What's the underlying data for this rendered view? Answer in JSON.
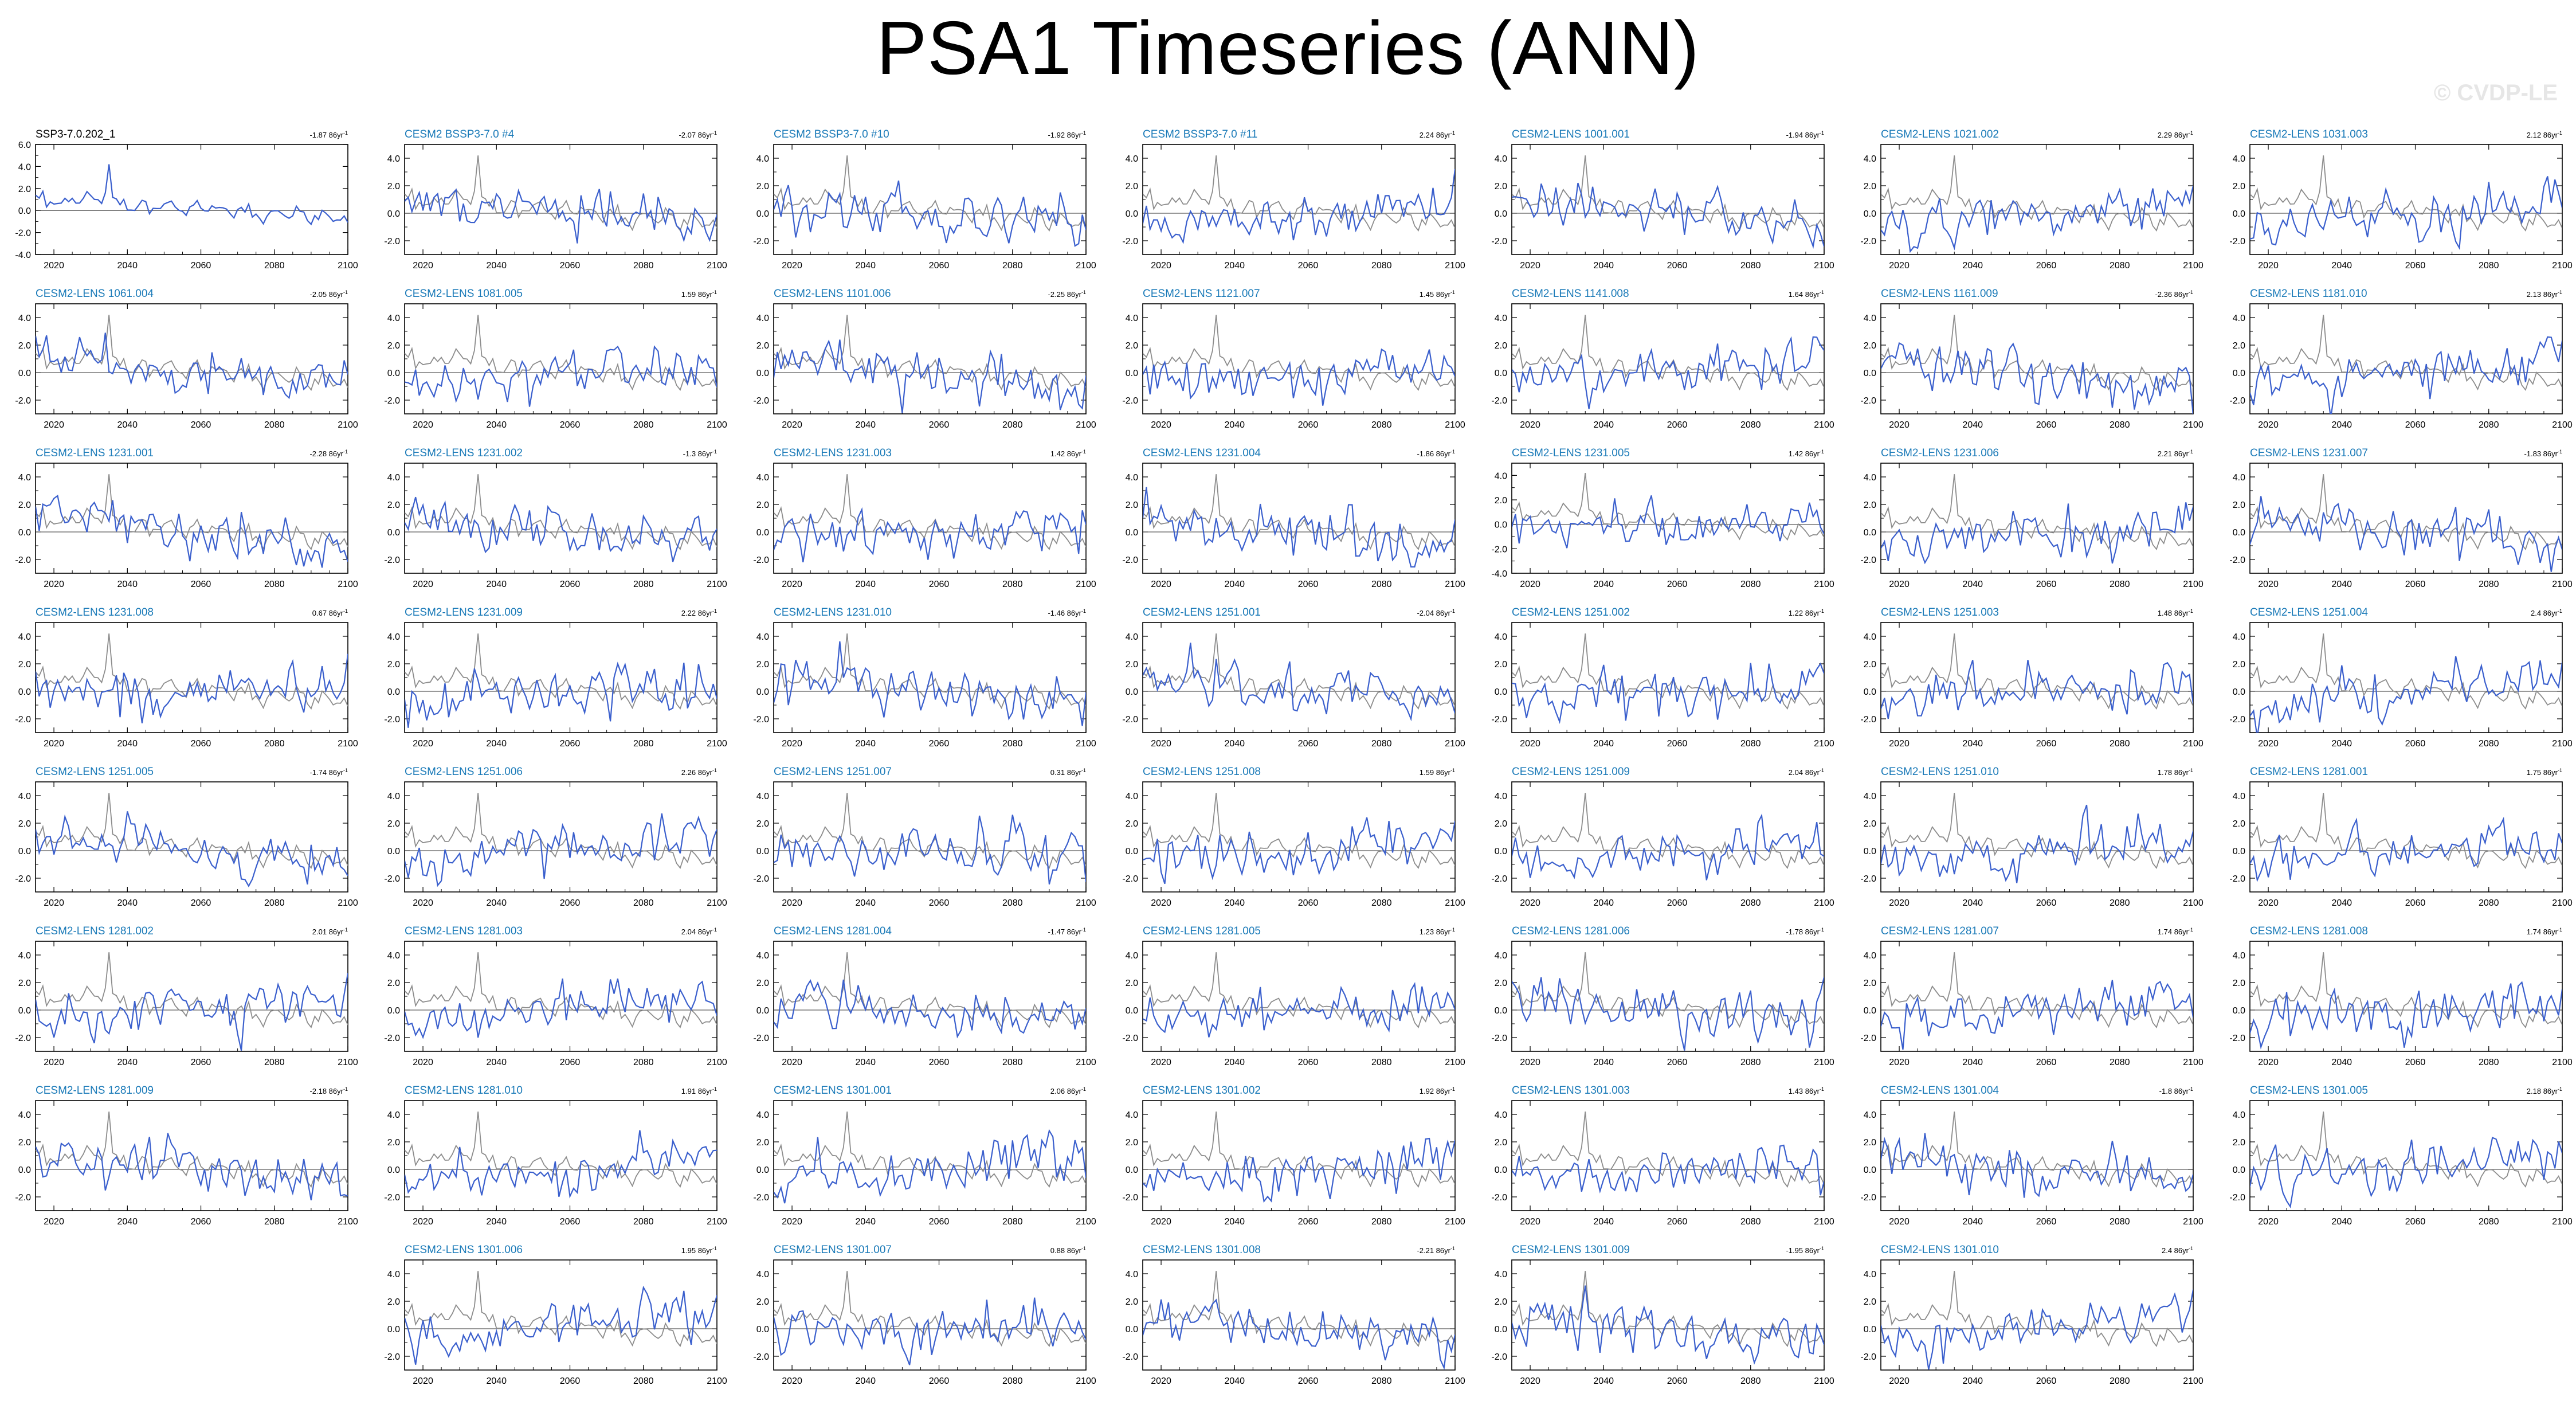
{
  "title": "PSA1 Timeseries (ANN)",
  "watermark": "© CVDP-LE",
  "colors": {
    "member": "#3a5fcd",
    "reference": "#8c8c8c",
    "zero": "#333333",
    "title_obs": "#000000",
    "title_member": "#1a7ab8"
  },
  "chart_data": {
    "type": "line",
    "layout": "panel-grid",
    "rows": 8,
    "cols": 7,
    "xlim": [
      2015,
      2100
    ],
    "x_ticks": [
      2020,
      2040,
      2060,
      2080,
      2100
    ],
    "x_tick_labels": [
      "2020",
      "2040",
      "2060",
      "2080",
      "2100"
    ],
    "series_note": "each panel: blue = member, gray = SSP3-7.0.202_1 reference",
    "panels": [
      {
        "label": "SSP3-7.0.202_1",
        "trend": "-1.87 86yr",
        "is_reference": true,
        "ylim": [
          -4,
          6
        ],
        "y_ticks": [
          "-4.0",
          "-2.0",
          "0.0",
          "2.0",
          "4.0",
          "6.0"
        ],
        "row": 0,
        "col": 0
      },
      {
        "label": "CESM2 BSSP3-7.0 #4",
        "trend": "-2.07 86yr",
        "ylim": [
          -3,
          5
        ],
        "y_ticks": [
          "-2.0",
          "0.0",
          "2.0",
          "4.0"
        ],
        "row": 0,
        "col": 1
      },
      {
        "label": "CESM2 BSSP3-7.0 #10",
        "trend": "-1.92 86yr",
        "ylim": [
          -3,
          5
        ],
        "y_ticks": [
          "-2.0",
          "0.0",
          "2.0",
          "4.0"
        ],
        "row": 0,
        "col": 2
      },
      {
        "label": "CESM2 BSSP3-7.0 #11",
        "trend": "2.24 86yr",
        "ylim": [
          -3,
          5
        ],
        "y_ticks": [
          "-2.0",
          "0.0",
          "2.0",
          "4.0"
        ],
        "row": 0,
        "col": 3
      },
      {
        "label": "CESM2-LENS 1001.001",
        "trend": "-1.94 86yr",
        "ylim": [
          -3,
          5
        ],
        "y_ticks": [
          "-2.0",
          "0.0",
          "2.0",
          "4.0"
        ],
        "row": 0,
        "col": 4
      },
      {
        "label": "CESM2-LENS 1021.002",
        "trend": "2.29 86yr",
        "ylim": [
          -3,
          5
        ],
        "y_ticks": [
          "-2.0",
          "0.0",
          "2.0",
          "4.0"
        ],
        "row": 0,
        "col": 5
      },
      {
        "label": "CESM2-LENS 1031.003",
        "trend": "2.12 86yr",
        "ylim": [
          -3,
          5
        ],
        "y_ticks": [
          "-2.0",
          "0.0",
          "2.0",
          "4.0"
        ],
        "row": 0,
        "col": 6
      },
      {
        "label": "CESM2-LENS 1061.004",
        "trend": "-2.05 86yr",
        "ylim": [
          -3,
          5
        ],
        "y_ticks": [
          "-2.0",
          "0.0",
          "2.0",
          "4.0"
        ],
        "row": 1,
        "col": 0
      },
      {
        "label": "CESM2-LENS 1081.005",
        "trend": "1.59 86yr",
        "ylim": [
          -3,
          5
        ],
        "y_ticks": [
          "-2.0",
          "0.0",
          "2.0",
          "4.0"
        ],
        "row": 1,
        "col": 1
      },
      {
        "label": "CESM2-LENS 1101.006",
        "trend": "-2.25 86yr",
        "ylim": [
          -3,
          5
        ],
        "y_ticks": [
          "-2.0",
          "0.0",
          "2.0",
          "4.0"
        ],
        "row": 1,
        "col": 2
      },
      {
        "label": "CESM2-LENS 1121.007",
        "trend": "1.45 86yr",
        "ylim": [
          -3,
          5
        ],
        "y_ticks": [
          "-2.0",
          "0.0",
          "2.0",
          "4.0"
        ],
        "row": 1,
        "col": 3
      },
      {
        "label": "CESM2-LENS 1141.008",
        "trend": "1.64 86yr",
        "ylim": [
          -3,
          5
        ],
        "y_ticks": [
          "-2.0",
          "0.0",
          "2.0",
          "4.0"
        ],
        "row": 1,
        "col": 4
      },
      {
        "label": "CESM2-LENS 1161.009",
        "trend": "-2.36 86yr",
        "ylim": [
          -3,
          5
        ],
        "y_ticks": [
          "-2.0",
          "0.0",
          "2.0",
          "4.0"
        ],
        "row": 1,
        "col": 5
      },
      {
        "label": "CESM2-LENS 1181.010",
        "trend": "2.13 86yr",
        "ylim": [
          -3,
          5
        ],
        "y_ticks": [
          "-2.0",
          "0.0",
          "2.0",
          "4.0"
        ],
        "row": 1,
        "col": 6
      },
      {
        "label": "CESM2-LENS 1231.001",
        "trend": "-2.28 86yr",
        "ylim": [
          -3,
          5
        ],
        "y_ticks": [
          "-2.0",
          "0.0",
          "2.0",
          "4.0"
        ],
        "row": 2,
        "col": 0
      },
      {
        "label": "CESM2-LENS 1231.002",
        "trend": "-1.3 86yr",
        "ylim": [
          -3,
          5
        ],
        "y_ticks": [
          "-2.0",
          "0.0",
          "2.0",
          "4.0"
        ],
        "row": 2,
        "col": 1
      },
      {
        "label": "CESM2-LENS 1231.003",
        "trend": "1.42 86yr",
        "ylim": [
          -3,
          5
        ],
        "y_ticks": [
          "-2.0",
          "0.0",
          "2.0",
          "4.0"
        ],
        "row": 2,
        "col": 2
      },
      {
        "label": "CESM2-LENS 1231.004",
        "trend": "-1.86 86yr",
        "ylim": [
          -3,
          5
        ],
        "y_ticks": [
          "-2.0",
          "0.0",
          "2.0",
          "4.0"
        ],
        "row": 2,
        "col": 3
      },
      {
        "label": "CESM2-LENS 1231.005",
        "trend": "1.42 86yr",
        "ylim": [
          -4,
          5
        ],
        "y_ticks": [
          "-4.0",
          "-2.0",
          "0.0",
          "2.0",
          "4.0"
        ],
        "row": 2,
        "col": 4
      },
      {
        "label": "CESM2-LENS 1231.006",
        "trend": "2.21 86yr",
        "ylim": [
          -3,
          5
        ],
        "y_ticks": [
          "-2.0",
          "0.0",
          "2.0",
          "4.0"
        ],
        "row": 2,
        "col": 5
      },
      {
        "label": "CESM2-LENS 1231.007",
        "trend": "-1.83 86yr",
        "ylim": [
          -3,
          5
        ],
        "y_ticks": [
          "-2.0",
          "0.0",
          "2.0",
          "4.0"
        ],
        "row": 2,
        "col": 6
      },
      {
        "label": "CESM2-LENS 1231.008",
        "trend": "0.67 86yr",
        "ylim": [
          -3,
          5
        ],
        "y_ticks": [
          "-2.0",
          "0.0",
          "2.0",
          "4.0"
        ],
        "row": 3,
        "col": 0
      },
      {
        "label": "CESM2-LENS 1231.009",
        "trend": "2.22 86yr",
        "ylim": [
          -3,
          5
        ],
        "y_ticks": [
          "-2.0",
          "0.0",
          "2.0",
          "4.0"
        ],
        "row": 3,
        "col": 1
      },
      {
        "label": "CESM2-LENS 1231.010",
        "trend": "-1.46 86yr",
        "ylim": [
          -3,
          5
        ],
        "y_ticks": [
          "-2.0",
          "0.0",
          "2.0",
          "4.0"
        ],
        "row": 3,
        "col": 2
      },
      {
        "label": "CESM2-LENS 1251.001",
        "trend": "-2.04 86yr",
        "ylim": [
          -3,
          5
        ],
        "y_ticks": [
          "-2.0",
          "0.0",
          "2.0",
          "4.0"
        ],
        "row": 3,
        "col": 3
      },
      {
        "label": "CESM2-LENS 1251.002",
        "trend": "1.22 86yr",
        "ylim": [
          -3,
          5
        ],
        "y_ticks": [
          "-2.0",
          "0.0",
          "2.0",
          "4.0"
        ],
        "row": 3,
        "col": 4
      },
      {
        "label": "CESM2-LENS 1251.003",
        "trend": "1.48 86yr",
        "ylim": [
          -3,
          5
        ],
        "y_ticks": [
          "-2.0",
          "0.0",
          "2.0",
          "4.0"
        ],
        "row": 3,
        "col": 5
      },
      {
        "label": "CESM2-LENS 1251.004",
        "trend": "2.4 86yr",
        "ylim": [
          -3,
          5
        ],
        "y_ticks": [
          "-2.0",
          "0.0",
          "2.0",
          "4.0"
        ],
        "row": 3,
        "col": 6
      },
      {
        "label": "CESM2-LENS 1251.005",
        "trend": "-1.74 86yr",
        "ylim": [
          -3,
          5
        ],
        "y_ticks": [
          "-2.0",
          "0.0",
          "2.0",
          "4.0"
        ],
        "row": 4,
        "col": 0
      },
      {
        "label": "CESM2-LENS 1251.006",
        "trend": "2.26 86yr",
        "ylim": [
          -3,
          5
        ],
        "y_ticks": [
          "-2.0",
          "0.0",
          "2.0",
          "4.0"
        ],
        "row": 4,
        "col": 1
      },
      {
        "label": "CESM2-LENS 1251.007",
        "trend": "0.31 86yr",
        "ylim": [
          -3,
          5
        ],
        "y_ticks": [
          "-2.0",
          "0.0",
          "2.0",
          "4.0"
        ],
        "row": 4,
        "col": 2
      },
      {
        "label": "CESM2-LENS 1251.008",
        "trend": "1.59 86yr",
        "ylim": [
          -3,
          5
        ],
        "y_ticks": [
          "-2.0",
          "0.0",
          "2.0",
          "4.0"
        ],
        "row": 4,
        "col": 3
      },
      {
        "label": "CESM2-LENS 1251.009",
        "trend": "2.04 86yr",
        "ylim": [
          -3,
          5
        ],
        "y_ticks": [
          "-2.0",
          "0.0",
          "2.0",
          "4.0"
        ],
        "row": 4,
        "col": 4
      },
      {
        "label": "CESM2-LENS 1251.010",
        "trend": "1.78 86yr",
        "ylim": [
          -3,
          5
        ],
        "y_ticks": [
          "-2.0",
          "0.0",
          "2.0",
          "4.0"
        ],
        "row": 4,
        "col": 5
      },
      {
        "label": "CESM2-LENS 1281.001",
        "trend": "1.75 86yr",
        "ylim": [
          -3,
          5
        ],
        "y_ticks": [
          "-2.0",
          "0.0",
          "2.0",
          "4.0"
        ],
        "row": 4,
        "col": 6
      },
      {
        "label": "CESM2-LENS 1281.002",
        "trend": "2.01 86yr",
        "ylim": [
          -3,
          5
        ],
        "y_ticks": [
          "-2.0",
          "0.0",
          "2.0",
          "4.0"
        ],
        "row": 5,
        "col": 0
      },
      {
        "label": "CESM2-LENS 1281.003",
        "trend": "2.04 86yr",
        "ylim": [
          -3,
          5
        ],
        "y_ticks": [
          "-2.0",
          "0.0",
          "2.0",
          "4.0"
        ],
        "row": 5,
        "col": 1
      },
      {
        "label": "CESM2-LENS 1281.004",
        "trend": "-1.47 86yr",
        "ylim": [
          -3,
          5
        ],
        "y_ticks": [
          "-2.0",
          "0.0",
          "2.0",
          "4.0"
        ],
        "row": 5,
        "col": 2
      },
      {
        "label": "CESM2-LENS 1281.005",
        "trend": "1.23 86yr",
        "ylim": [
          -3,
          5
        ],
        "y_ticks": [
          "-2.0",
          "0.0",
          "2.0",
          "4.0"
        ],
        "row": 5,
        "col": 3
      },
      {
        "label": "CESM2-LENS 1281.006",
        "trend": "-1.78 86yr",
        "ylim": [
          -3,
          5
        ],
        "y_ticks": [
          "-2.0",
          "0.0",
          "2.0",
          "4.0"
        ],
        "row": 5,
        "col": 4
      },
      {
        "label": "CESM2-LENS 1281.007",
        "trend": "1.74 86yr",
        "ylim": [
          -3,
          5
        ],
        "y_ticks": [
          "-2.0",
          "0.0",
          "2.0",
          "4.0"
        ],
        "row": 5,
        "col": 5
      },
      {
        "label": "CESM2-LENS 1281.008",
        "trend": "1.74 86yr",
        "ylim": [
          -3,
          5
        ],
        "y_ticks": [
          "-2.0",
          "0.0",
          "2.0",
          "4.0"
        ],
        "row": 5,
        "col": 6
      },
      {
        "label": "CESM2-LENS 1281.009",
        "trend": "-2.18 86yr",
        "ylim": [
          -3,
          5
        ],
        "y_ticks": [
          "-2.0",
          "0.0",
          "2.0",
          "4.0"
        ],
        "row": 6,
        "col": 0
      },
      {
        "label": "CESM2-LENS 1281.010",
        "trend": "1.91 86yr",
        "ylim": [
          -3,
          5
        ],
        "y_ticks": [
          "-2.0",
          "0.0",
          "2.0",
          "4.0"
        ],
        "row": 6,
        "col": 1
      },
      {
        "label": "CESM2-LENS 1301.001",
        "trend": "2.06 86yr",
        "ylim": [
          -3,
          5
        ],
        "y_ticks": [
          "-2.0",
          "0.0",
          "2.0",
          "4.0"
        ],
        "row": 6,
        "col": 2
      },
      {
        "label": "CESM2-LENS 1301.002",
        "trend": "1.92 86yr",
        "ylim": [
          -3,
          5
        ],
        "y_ticks": [
          "-2.0",
          "0.0",
          "2.0",
          "4.0"
        ],
        "row": 6,
        "col": 3
      },
      {
        "label": "CESM2-LENS 1301.003",
        "trend": "1.43 86yr",
        "ylim": [
          -3,
          5
        ],
        "y_ticks": [
          "-2.0",
          "0.0",
          "2.0",
          "4.0"
        ],
        "row": 6,
        "col": 4
      },
      {
        "label": "CESM2-LENS 1301.004",
        "trend": "-1.8 86yr",
        "ylim": [
          -3,
          5
        ],
        "y_ticks": [
          "-2.0",
          "0.0",
          "2.0",
          "4.0"
        ],
        "row": 6,
        "col": 5
      },
      {
        "label": "CESM2-LENS 1301.005",
        "trend": "2.18 86yr",
        "ylim": [
          -3,
          5
        ],
        "y_ticks": [
          "-2.0",
          "0.0",
          "2.0",
          "4.0"
        ],
        "row": 6,
        "col": 6
      },
      {
        "label": "CESM2-LENS 1301.006",
        "trend": "1.95 86yr",
        "ylim": [
          -3,
          5
        ],
        "y_ticks": [
          "-2.0",
          "0.0",
          "2.0",
          "4.0"
        ],
        "row": 7,
        "col": 1
      },
      {
        "label": "CESM2-LENS 1301.007",
        "trend": "0.88 86yr",
        "ylim": [
          -3,
          5
        ],
        "y_ticks": [
          "-2.0",
          "0.0",
          "2.0",
          "4.0"
        ],
        "row": 7,
        "col": 2
      },
      {
        "label": "CESM2-LENS 1301.008",
        "trend": "-2.21 86yr",
        "ylim": [
          -3,
          5
        ],
        "y_ticks": [
          "-2.0",
          "0.0",
          "2.0",
          "4.0"
        ],
        "row": 7,
        "col": 3
      },
      {
        "label": "CESM2-LENS 1301.009",
        "trend": "-1.95 86yr",
        "ylim": [
          -3,
          5
        ],
        "y_ticks": [
          "-2.0",
          "0.0",
          "2.0",
          "4.0"
        ],
        "row": 7,
        "col": 4
      },
      {
        "label": "CESM2-LENS 1301.010",
        "trend": "2.4 86yr",
        "ylim": [
          -3,
          5
        ],
        "y_ticks": [
          "-2.0",
          "0.0",
          "2.0",
          "4.0"
        ],
        "row": 7,
        "col": 5
      }
    ]
  }
}
